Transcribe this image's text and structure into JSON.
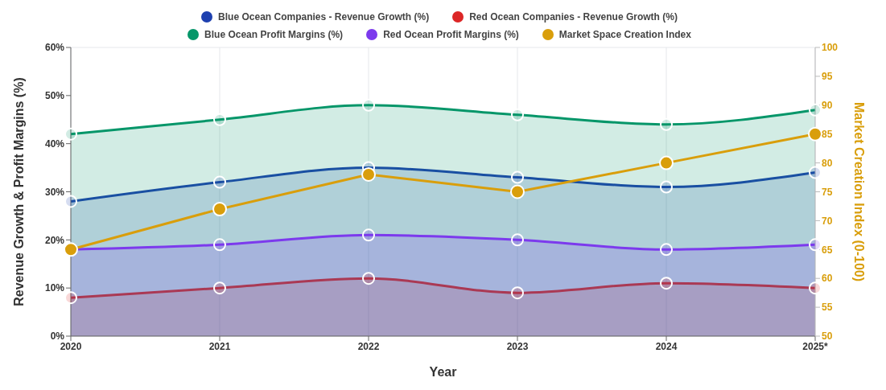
{
  "chart_data": {
    "type": "area",
    "xlabel": "Year",
    "ylabel": "Revenue Growth & Profit Margins (%)",
    "y2label": "Market Creation Index (0-100)",
    "categories": [
      "2020",
      "2021",
      "2022",
      "2023",
      "2024",
      "2025*"
    ],
    "series": [
      {
        "name": "Blue Ocean Companies - Revenue Growth (%)",
        "color": "#1e40af",
        "values": [
          28,
          32,
          35,
          33,
          31,
          34
        ]
      },
      {
        "name": "Red Ocean Companies - Revenue Growth (%)",
        "color": "#dc2626",
        "values": [
          8,
          10,
          12,
          9,
          11,
          10
        ]
      },
      {
        "name": "Blue Ocean Profit Margins (%)",
        "color": "#059669",
        "values": [
          42,
          45,
          48,
          46,
          44,
          47
        ]
      },
      {
        "name": "Red Ocean Profit Margins (%)",
        "color": "#7c3aed",
        "values": [
          18,
          19,
          21,
          20,
          18,
          19
        ]
      },
      {
        "name": "Market Space Creation Index",
        "color": "#d99e0b",
        "type": "line",
        "axis": "y2",
        "values": [
          65,
          72,
          78,
          75,
          80,
          85
        ]
      }
    ],
    "ylim": [
      0,
      60
    ],
    "yticks": [
      {
        "value": 0,
        "label": "0%"
      },
      {
        "value": 10,
        "label": "10%"
      },
      {
        "value": 20,
        "label": "20%"
      },
      {
        "value": 30,
        "label": "30%"
      },
      {
        "value": 40,
        "label": "40%"
      },
      {
        "value": 50,
        "label": "50%"
      },
      {
        "value": 60,
        "label": "60%"
      }
    ],
    "y2lim": [
      50,
      100
    ],
    "y2ticks": [
      50,
      55,
      60,
      65,
      70,
      75,
      80,
      85,
      90,
      95,
      100
    ],
    "grid": true,
    "legend": "top",
    "marker": "circle"
  }
}
